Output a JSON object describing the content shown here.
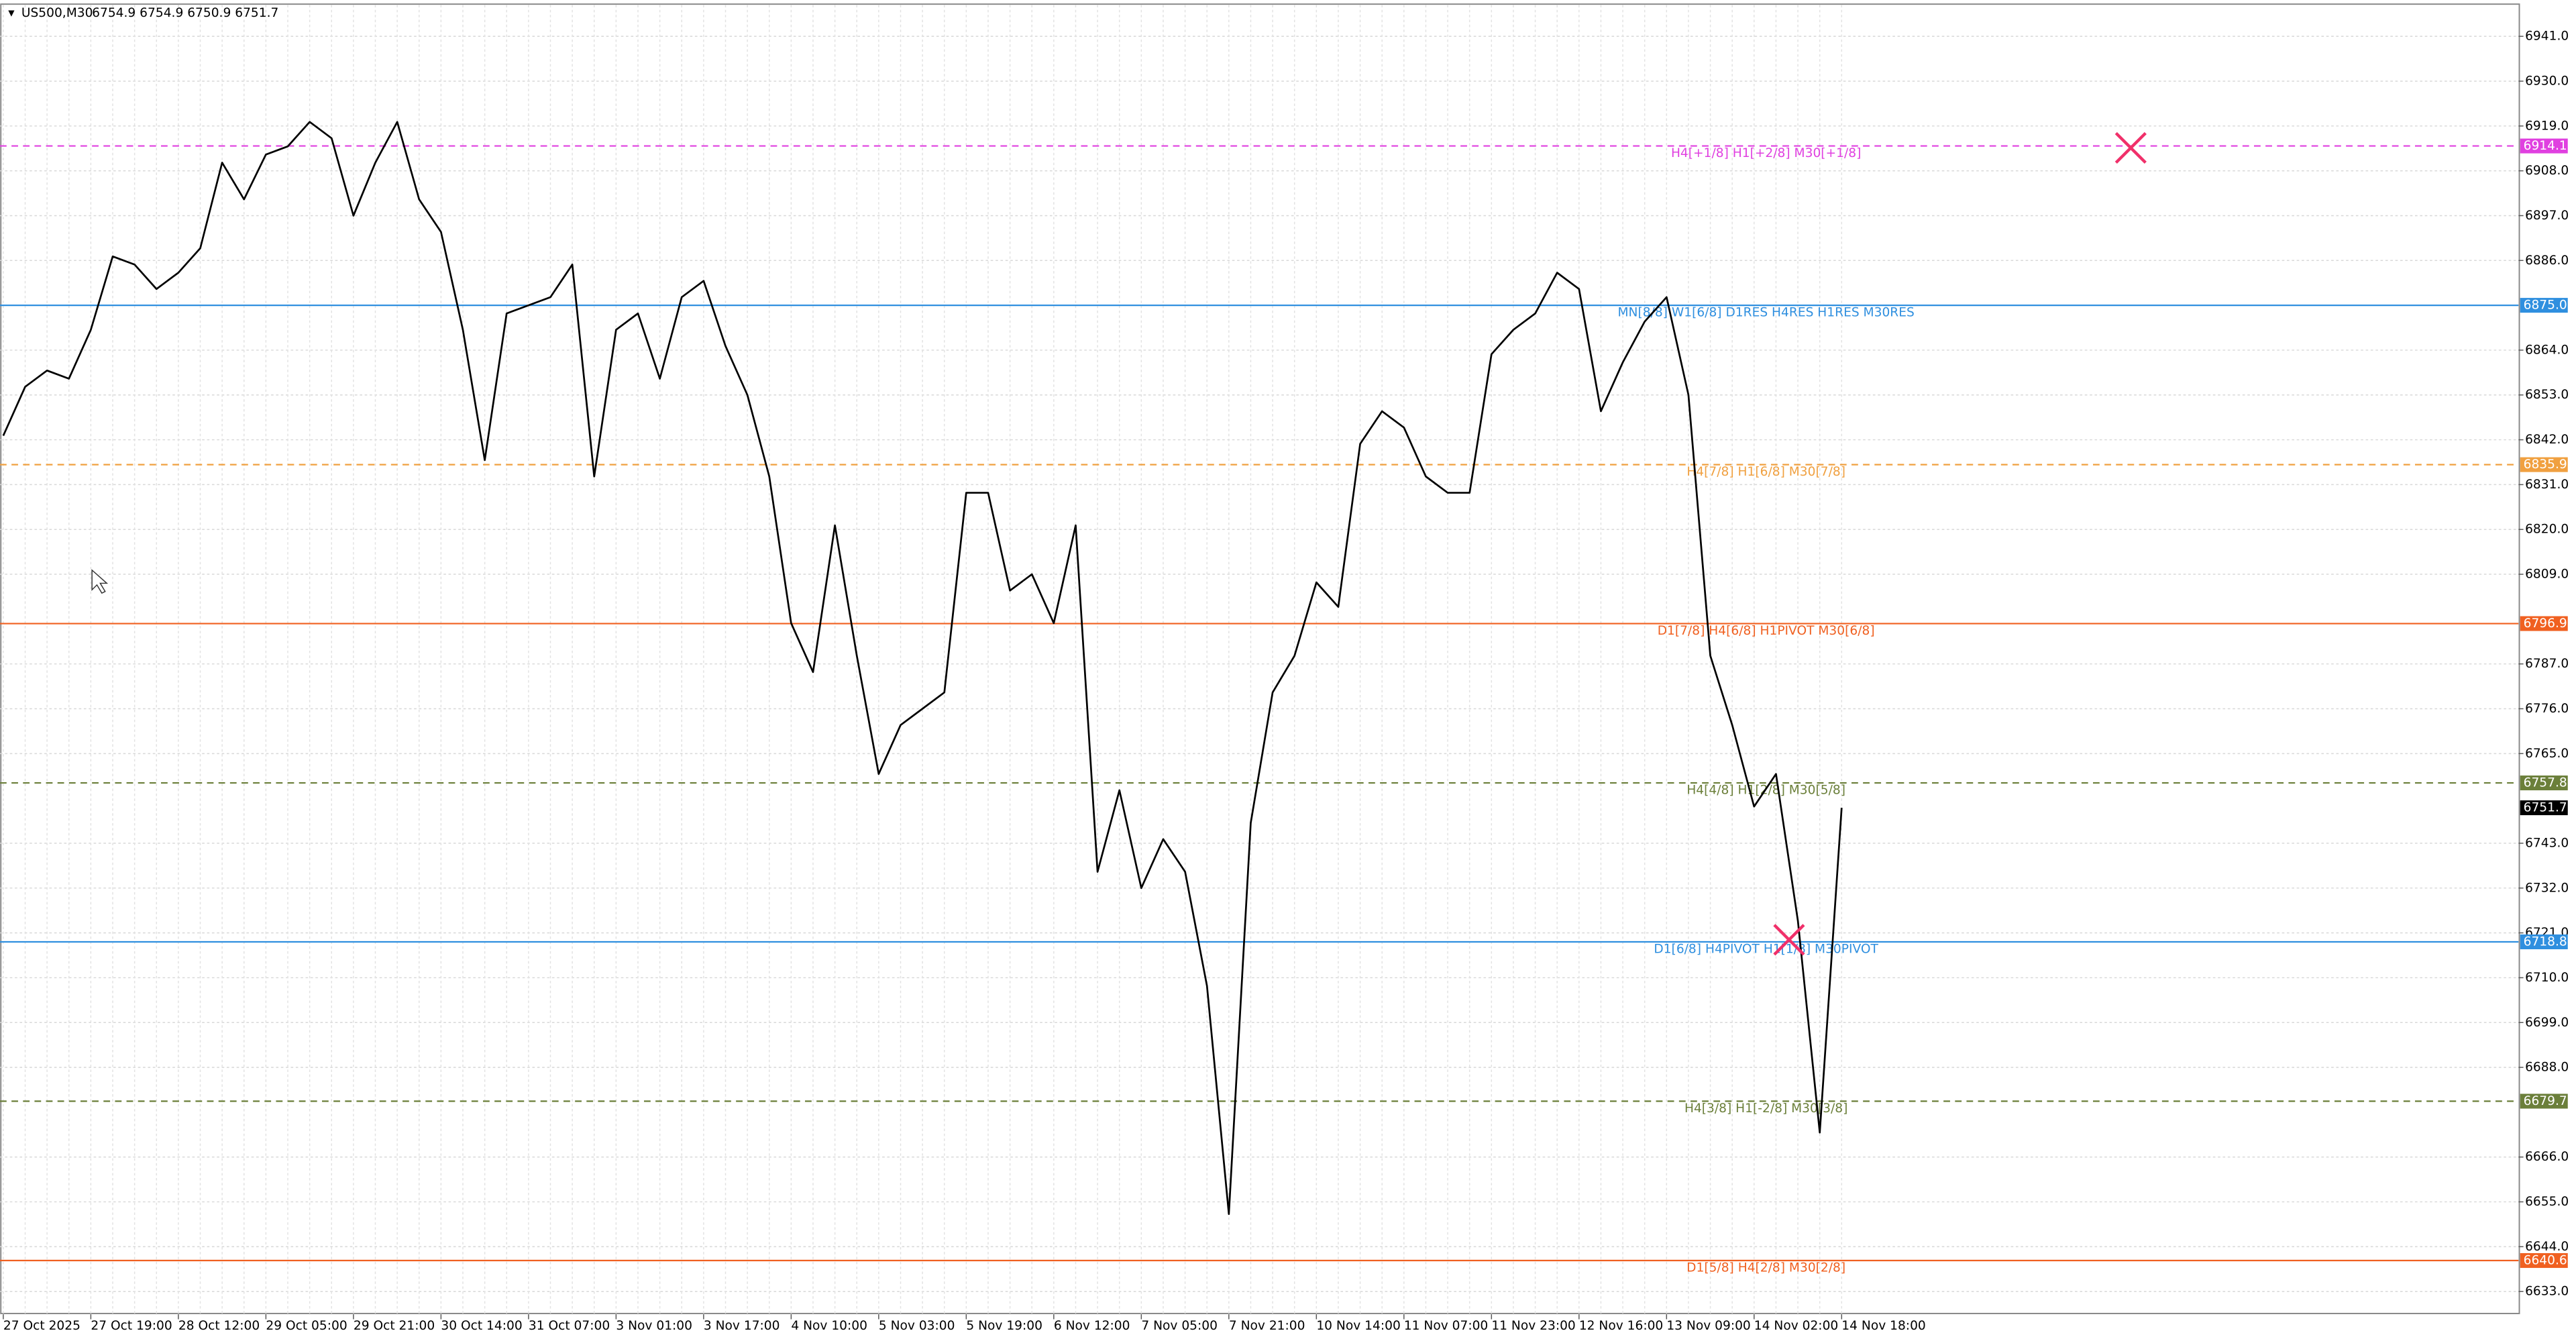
{
  "chart_data": {
    "type": "line",
    "title": "US500,M30",
    "subtitle": "6754.9 6754.9 6750.9 6751.7",
    "color": "#000000",
    "categories": [
      "27 Oct 2025",
      null,
      null,
      null,
      "27 Oct 19:00",
      null,
      null,
      null,
      "28 Oct 12:00",
      null,
      null,
      null,
      "29 Oct 05:00",
      null,
      null,
      null,
      "29 Oct 21:00",
      null,
      null,
      null,
      "30 Oct 14:00",
      null,
      null,
      null,
      "31 Oct 07:00",
      null,
      null,
      null,
      "3 Nov 01:00",
      null,
      null,
      null,
      "3 Nov 17:00",
      null,
      null,
      null,
      "4 Nov 10:00",
      null,
      null,
      null,
      "5 Nov 03:00",
      null,
      null,
      null,
      "5 Nov 19:00",
      null,
      null,
      null,
      "6 Nov 12:00",
      null,
      null,
      null,
      "7 Nov 05:00",
      null,
      null,
      null,
      "7 Nov 21:00",
      null,
      null,
      null,
      "10 Nov 14:00",
      null,
      null,
      null,
      "11 Nov 07:00",
      null,
      null,
      null,
      "11 Nov 23:00",
      null,
      null,
      null,
      "12 Nov 16:00",
      null,
      null,
      null,
      "13 Nov 09:00",
      null,
      null,
      null,
      "14 Nov 02:00",
      null,
      null,
      null,
      "14 Nov 18:00"
    ],
    "values": [
      6843,
      6855,
      6859,
      6857,
      6869,
      6887,
      6885,
      6879,
      6883,
      6889,
      6910,
      6901,
      6912,
      6914,
      6920,
      6916,
      6897,
      6910,
      6920,
      6901,
      6893,
      6869,
      6837,
      6873,
      6875,
      6877,
      6885,
      6833,
      6869,
      6873,
      6857,
      6877,
      6881,
      6865,
      6853,
      6833,
      6797,
      6785,
      6821,
      6789,
      6760,
      6772,
      6776,
      6780,
      6829,
      6829,
      6805,
      6809,
      6797,
      6821,
      6736,
      6756,
      6732,
      6744,
      6736,
      6708,
      6652,
      6748,
      6780,
      6789,
      6807,
      6801,
      6841,
      6849,
      6845,
      6833,
      6829,
      6829,
      6863,
      6869,
      6873,
      6883,
      6879,
      6849,
      6861,
      6871,
      6877,
      6853,
      6789,
      6772,
      6752,
      6760,
      6724,
      6672,
      6751.7
    ],
    "ylim": [
      6627.4,
      6948.7
    ],
    "yticks": [
      {
        "value": 6941,
        "label": "6941.0"
      },
      {
        "value": 6930,
        "label": "6930.0"
      },
      {
        "value": 6919,
        "label": "6919.0"
      },
      {
        "value": 6908,
        "label": "6908.0"
      },
      {
        "value": 6897,
        "label": "6897.0"
      },
      {
        "value": 6886,
        "label": "6886.0"
      },
      {
        "value": 6864,
        "label": "6864.0"
      },
      {
        "value": 6853,
        "label": "6853.0"
      },
      {
        "value": 6842,
        "label": "6842.0"
      },
      {
        "value": 6831,
        "label": "6831.0"
      },
      {
        "value": 6820,
        "label": "6820.0"
      },
      {
        "value": 6809,
        "label": "6809.0"
      },
      {
        "value": 6787,
        "label": "6787.0"
      },
      {
        "value": 6776,
        "label": "6776.0"
      },
      {
        "value": 6765,
        "label": "6765.0"
      },
      {
        "value": 6743,
        "label": "6743.0"
      },
      {
        "value": 6732,
        "label": "6732.0"
      },
      {
        "value": 6721,
        "label": "6721.0"
      },
      {
        "value": 6710,
        "label": "6710.0"
      },
      {
        "value": 6699,
        "label": "6699.0"
      },
      {
        "value": 6688,
        "label": "6688.0"
      },
      {
        "value": 6666,
        "label": "6666.0"
      },
      {
        "value": 6655,
        "label": "6655.0"
      },
      {
        "value": 6644,
        "label": "6644.0"
      },
      {
        "value": 6633,
        "label": "6633.0"
      }
    ],
    "grid": true,
    "levels": [
      {
        "value": 6914.1,
        "label": "H4[+1/8] H1[+2/8] M30[+1/8]",
        "color": "#e040e0",
        "dashed": true
      },
      {
        "value": 6875,
        "value_label": "6875.0",
        "label": "MN[8/8] W1[6/8] D1RES H4RES H1RES M30RES",
        "color": "#2f8fdf",
        "dashed": false
      },
      {
        "value": 6835.9,
        "label": "H4[7/8] H1[6/8] M30[7/8]",
        "color": "#f0a040",
        "dashed": true
      },
      {
        "value": 6796.9,
        "label": "D1[7/8] H4[6/8] H1PIVOT M30[6/8]",
        "color": "#f06020",
        "dashed": false
      },
      {
        "value": 6757.8,
        "label": "H4[4/8] H1[2/8] M30[5/8]",
        "color": "#6b7f3a",
        "dashed": true
      },
      {
        "value": 6718.8,
        "label": "D1[6/8] H4PIVOT H1[1/8] M30PIVOT",
        "color": "#2f8fdf",
        "dashed": false
      },
      {
        "value": 6679.7,
        "label": "H4[3/8] H1[-2/8] M30[3/8]",
        "color": "#6b7f3a",
        "dashed": true
      },
      {
        "value": 6640.6,
        "label": "D1[5/8] H4[2/8] M30[2/8]",
        "color": "#f06020",
        "dashed": false
      }
    ],
    "last_price": 6751.7
  }
}
